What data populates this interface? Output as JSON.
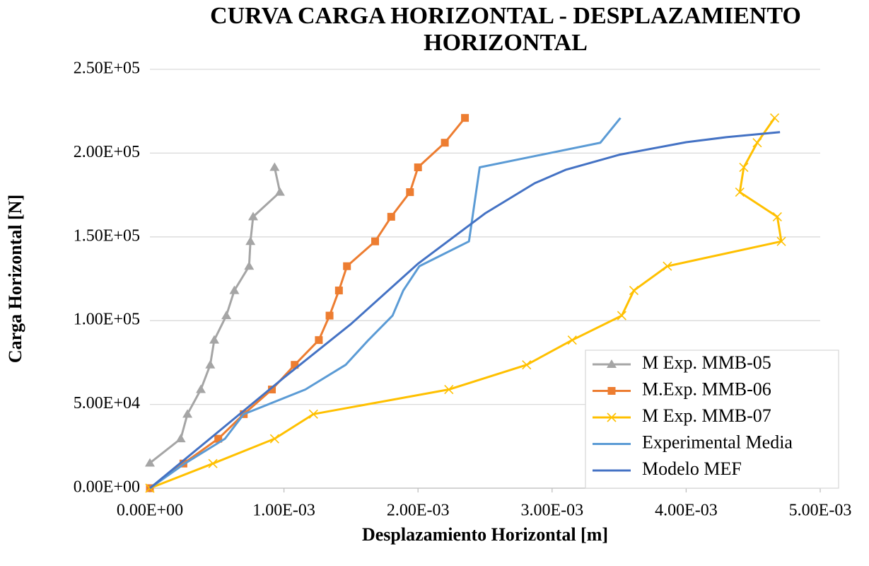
{
  "chart_data": {
    "type": "line",
    "title": "CURVA CARGA HORIZONTAL - DESPLAZAMIENTO HORIZONTAL",
    "x_label": "Desplazamiento Horizontal [m]",
    "y_label": "Carga Horizontal [N]",
    "xlim": [
      0,
      0.005
    ],
    "ylim": [
      0,
      250000
    ],
    "xticks": [
      {
        "value": 0,
        "label": "0.00E+00"
      },
      {
        "value": 0.001,
        "label": "1.00E-03"
      },
      {
        "value": 0.002,
        "label": "2.00E-03"
      },
      {
        "value": 0.003,
        "label": "3.00E-03"
      },
      {
        "value": 0.004,
        "label": "4.00E-03"
      },
      {
        "value": 0.005,
        "label": "5.00E-03"
      }
    ],
    "yticks": [
      {
        "value": 0,
        "label": "0.00E+00"
      },
      {
        "value": 50000,
        "label": "5.00E+04"
      },
      {
        "value": 100000,
        "label": "1.00E+05"
      },
      {
        "value": 150000,
        "label": "1.50E+05"
      },
      {
        "value": 200000,
        "label": "2.00E+05"
      },
      {
        "value": 250000,
        "label": "2.50E+05"
      }
    ],
    "grid": true,
    "legend": "lower right",
    "series": [
      {
        "name": "M Exp. MMB-05",
        "color": "#a5a5a5",
        "marker": "triangle",
        "x": [
          0,
          0.00023,
          0.00028,
          0.00038,
          0.00045,
          0.00048,
          0.00057,
          0.00063,
          0.00074,
          0.00075,
          0.00077,
          0.00097,
          0.00093
        ],
        "values": [
          15000,
          29500,
          44200,
          58900,
          73600,
          88400,
          103000,
          118000,
          132500,
          147300,
          162000,
          176700,
          191500
        ]
      },
      {
        "name": "M.Exp. MMB-06",
        "color": "#ed7d31",
        "marker": "square",
        "x": [
          0,
          0.00025,
          0.00051,
          0.0007,
          0.00091,
          0.00108,
          0.00126,
          0.00134,
          0.00141,
          0.00147,
          0.00168,
          0.0018,
          0.00194,
          0.002,
          0.0022,
          0.00235
        ],
        "values": [
          0,
          14700,
          29500,
          44200,
          58900,
          73600,
          88400,
          103000,
          118000,
          132500,
          147300,
          162000,
          176700,
          191500,
          206200,
          221000
        ]
      },
      {
        "name": "M Exp. MMB-07",
        "color": "#ffc000",
        "marker": "x",
        "x": [
          0,
          0.00047,
          0.00093,
          0.00122,
          0.00223,
          0.00281,
          0.00315,
          0.00352,
          0.00361,
          0.00386,
          0.00471,
          0.00468,
          0.0044,
          0.00443,
          0.00453,
          0.00466
        ],
        "values": [
          0,
          14700,
          29500,
          44200,
          58900,
          73600,
          88400,
          103000,
          118000,
          132500,
          147300,
          162000,
          176700,
          191500,
          206200,
          221000
        ]
      },
      {
        "name": "Experimental Media",
        "color": "#5b9bd5",
        "marker": "none",
        "x": [
          0,
          0.00026,
          0.00056,
          0.0007,
          0.00116,
          0.00146,
          0.00163,
          0.00181,
          0.00189,
          0.00201,
          0.00238,
          0.00246,
          0.00336,
          0.00351
        ],
        "values": [
          0,
          14700,
          29500,
          44200,
          58900,
          73600,
          88400,
          103000,
          118000,
          132500,
          147300,
          191500,
          206200,
          221000
        ]
      },
      {
        "name": "Modelo MEF",
        "color": "#4472c4",
        "marker": "none",
        "x": [
          0,
          0.0005,
          0.001,
          0.0015,
          0.002,
          0.0025,
          0.00287,
          0.0031,
          0.0035,
          0.004,
          0.0043,
          0.0047
        ],
        "values": [
          0,
          33000,
          66000,
          98000,
          134000,
          164000,
          182000,
          190000,
          199000,
          206500,
          209500,
          212500
        ]
      }
    ]
  }
}
